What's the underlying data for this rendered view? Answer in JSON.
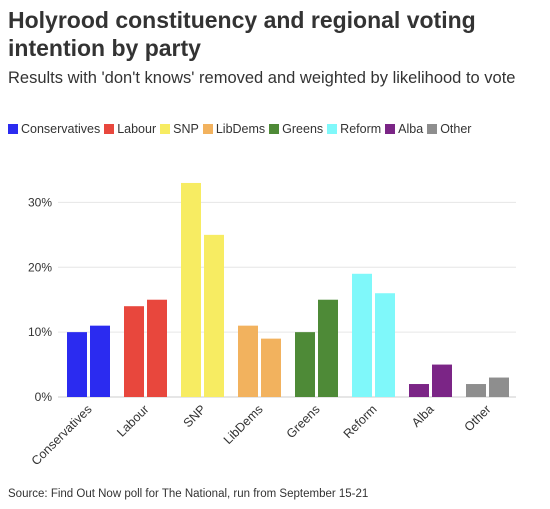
{
  "title": "Holyrood constituency and regional voting intention by party",
  "subtitle": "Results with 'don't knows' removed and weighted by likelihood to vote",
  "source": "Source: Find Out Now poll for The National, run from September 15-21",
  "chart_data": {
    "type": "bar",
    "categories": [
      "Conservatives",
      "Labour",
      "SNP",
      "LibDems",
      "Greens",
      "Reform",
      "Alba",
      "Other"
    ],
    "colors": [
      "#2b2bf0",
      "#e8473d",
      "#f7ec62",
      "#f2b25e",
      "#4e8a37",
      "#7ff8fa",
      "#7b2586",
      "#8e8e8e"
    ],
    "series": [
      {
        "values": [
          10,
          14,
          33,
          11,
          10,
          19,
          2,
          2
        ]
      },
      {
        "values": [
          11,
          15,
          25,
          9,
          15,
          16,
          5,
          3
        ]
      }
    ],
    "yticks": [
      "0%",
      "10%",
      "20%",
      "30%"
    ],
    "ylim": [
      0,
      35
    ],
    "grid": true,
    "legend_position": "top-left"
  }
}
